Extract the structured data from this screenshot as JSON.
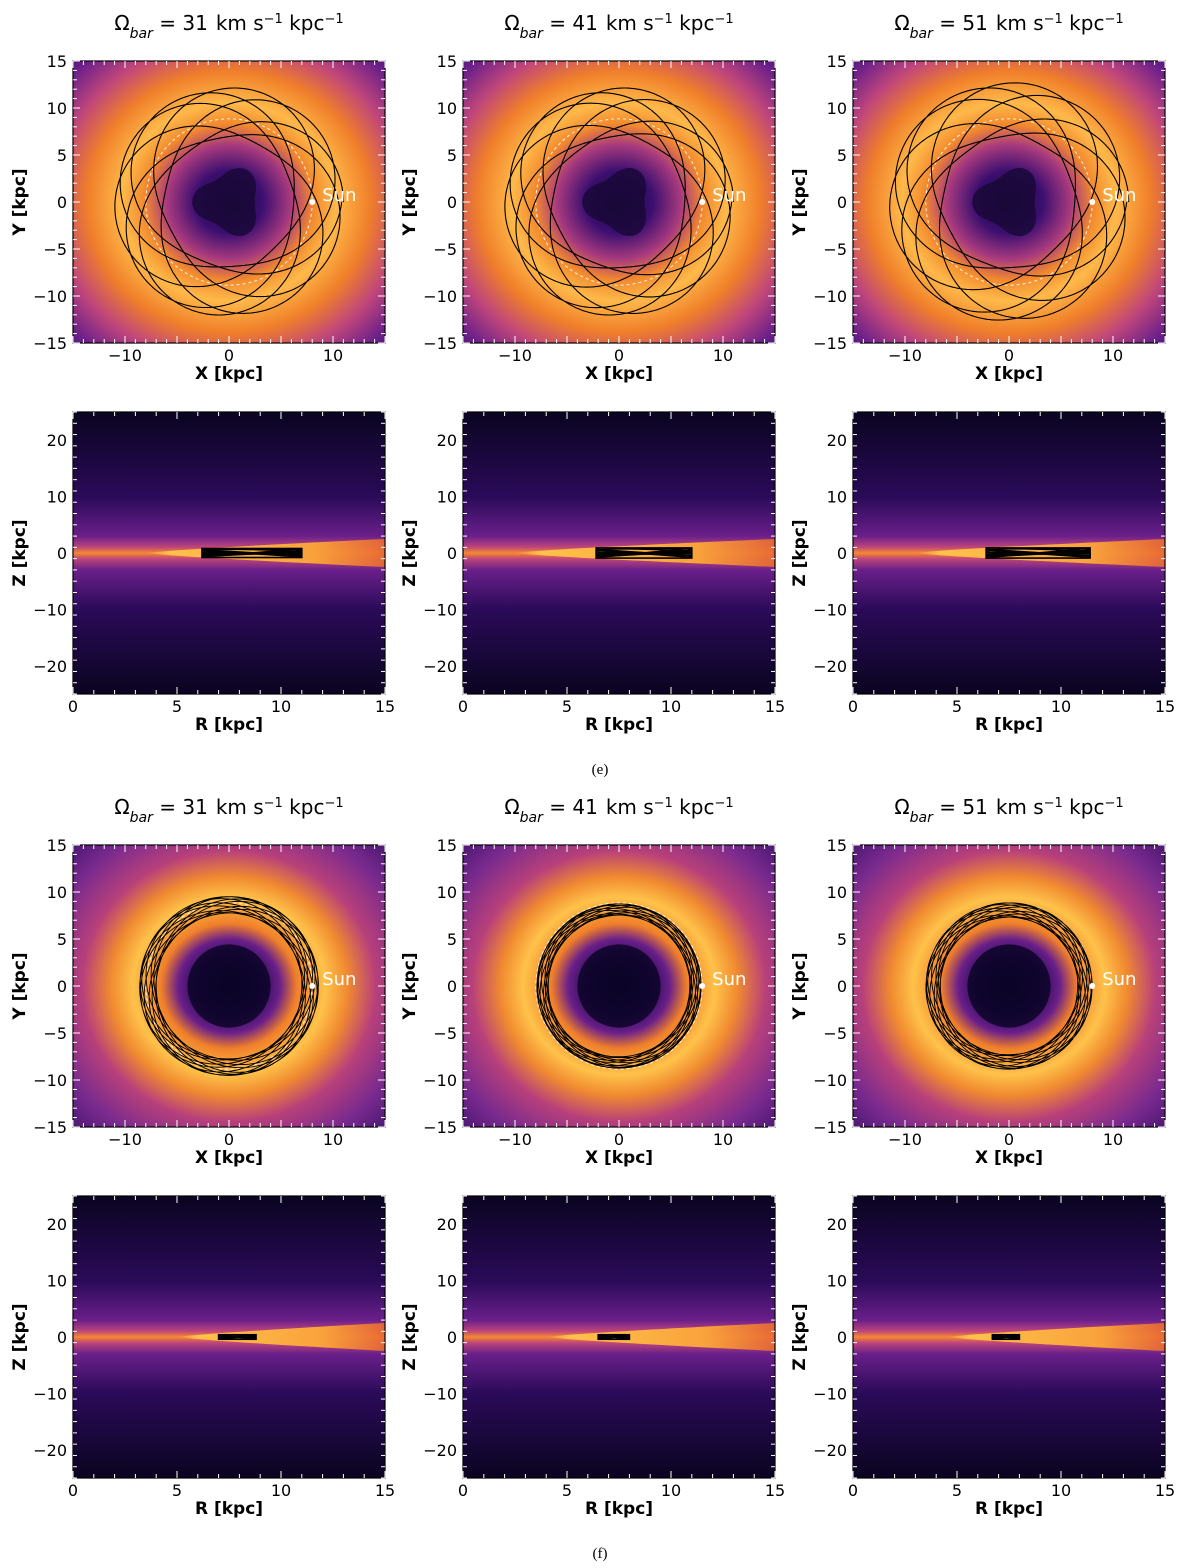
{
  "sections": [
    {
      "caption": "(e)",
      "columns": [
        {
          "title_prefix": "Ω",
          "title_sub": "bar",
          "title_eq": " = ",
          "value": "31",
          "unit_km": "km s",
          "unit_exp": "−1",
          "unit_kpc": " kpc",
          "unit_exp2": "−1",
          "face_on": {
            "xlabel": "X [kpc]",
            "ylabel": "Y [kpc]",
            "xticks": [
              "−10",
              "0",
              "10"
            ],
            "yticks": [
              "15",
              "10",
              "5",
              "0",
              "−5",
              "−10",
              "−15"
            ],
            "xlim": [
              -15,
              15
            ],
            "ylim": [
              -15,
              15
            ],
            "sun_label": "Sun",
            "sun_x": 8,
            "sun_y": 0,
            "orbit_type": "rosette",
            "orbit_rmin": 6.2,
            "orbit_rmax": 11.0,
            "ref_circle_r": 8.0,
            "inner_hole": "triangular"
          },
          "edge_on": {
            "xlabel": "R [kpc]",
            "ylabel": "Z [kpc]",
            "xticks": [
              "0",
              "5",
              "10",
              "15"
            ],
            "yticks": [
              "20",
              "10",
              "0",
              "−10",
              "−20"
            ],
            "xlim": [
              0,
              15
            ],
            "ylim": [
              -25,
              25
            ],
            "orbit_rmin": 6.2,
            "orbit_rmax": 11.0,
            "orbit_zmax": 0.8,
            "disk_start": 3.5
          }
        },
        {
          "title_prefix": "Ω",
          "title_sub": "bar",
          "title_eq": " = ",
          "value": "41",
          "unit_km": "km s",
          "unit_exp": "−1",
          "unit_kpc": " kpc",
          "unit_exp2": "−1",
          "face_on": {
            "xlabel": "X [kpc]",
            "ylabel": "Y [kpc]",
            "xticks": [
              "−10",
              "0",
              "10"
            ],
            "yticks": [
              "15",
              "10",
              "5",
              "0",
              "−5",
              "−10",
              "−15"
            ],
            "xlim": [
              -15,
              15
            ],
            "ylim": [
              -15,
              15
            ],
            "sun_label": "Sun",
            "sun_x": 8,
            "sun_y": 0,
            "orbit_type": "rosette",
            "orbit_rmin": 6.3,
            "orbit_rmax": 11.0,
            "ref_circle_r": 8.0,
            "inner_hole": "triangular"
          },
          "edge_on": {
            "xlabel": "R [kpc]",
            "ylabel": "Z [kpc]",
            "xticks": [
              "0",
              "5",
              "10",
              "15"
            ],
            "yticks": [
              "20",
              "10",
              "0",
              "−10",
              "−20"
            ],
            "xlim": [
              0,
              15
            ],
            "ylim": [
              -25,
              25
            ],
            "orbit_rmin": 6.4,
            "orbit_rmax": 11.0,
            "orbit_zmax": 0.9,
            "disk_start": 2.5
          }
        },
        {
          "title_prefix": "Ω",
          "title_sub": "bar",
          "title_eq": " = ",
          "value": "51",
          "unit_km": "km s",
          "unit_exp": "−1",
          "unit_kpc": " kpc",
          "unit_exp2": "−1",
          "face_on": {
            "xlabel": "X [kpc]",
            "ylabel": "Y [kpc]",
            "xticks": [
              "−10",
              "0",
              "10"
            ],
            "yticks": [
              "15",
              "10",
              "5",
              "0",
              "−5",
              "−10",
              "−15"
            ],
            "xlim": [
              -15,
              15
            ],
            "ylim": [
              -15,
              15
            ],
            "sun_label": "Sun",
            "sun_x": 8,
            "sun_y": 0,
            "orbit_type": "rosette",
            "orbit_rmin": 6.3,
            "orbit_rmax": 11.5,
            "ref_circle_r": 8.0,
            "inner_hole": "triangular"
          },
          "edge_on": {
            "xlabel": "R [kpc]",
            "ylabel": "Z [kpc]",
            "xticks": [
              "0",
              "5",
              "10",
              "15"
            ],
            "yticks": [
              "20",
              "10",
              "0",
              "−10",
              "−20"
            ],
            "xlim": [
              0,
              15
            ],
            "ylim": [
              -25,
              25
            ],
            "orbit_rmin": 6.4,
            "orbit_rmax": 11.4,
            "orbit_zmax": 0.9,
            "disk_start": 3.0
          }
        }
      ]
    },
    {
      "caption": "(f)",
      "columns": [
        {
          "title_prefix": "Ω",
          "title_sub": "bar",
          "title_eq": " = ",
          "value": "31",
          "unit_km": "km s",
          "unit_exp": "−1",
          "unit_kpc": " kpc",
          "unit_exp2": "−1",
          "face_on": {
            "xlabel": "X [kpc]",
            "ylabel": "Y [kpc]",
            "xticks": [
              "−10",
              "0",
              "10"
            ],
            "yticks": [
              "15",
              "10",
              "5",
              "0",
              "−5",
              "−10",
              "−15"
            ],
            "xlim": [
              -15,
              15
            ],
            "ylim": [
              -15,
              15
            ],
            "sun_label": "Sun",
            "sun_x": 8,
            "sun_y": 0,
            "orbit_type": "ring",
            "orbit_rmin": 7.0,
            "orbit_rmax": 8.6,
            "ref_circle_r": 8.0,
            "inner_hole": "round"
          },
          "edge_on": {
            "xlabel": "R [kpc]",
            "ylabel": "Z [kpc]",
            "xticks": [
              "0",
              "5",
              "10",
              "15"
            ],
            "yticks": [
              "20",
              "10",
              "0",
              "−10",
              "−20"
            ],
            "xlim": [
              0,
              15
            ],
            "ylim": [
              -25,
              25
            ],
            "orbit_rmin": 7.0,
            "orbit_rmax": 8.8,
            "orbit_zmax": 0.4,
            "disk_start": 5.0
          }
        },
        {
          "title_prefix": "Ω",
          "title_sub": "bar",
          "title_eq": " = ",
          "value": "41",
          "unit_km": "km s",
          "unit_exp": "−1",
          "unit_kpc": " kpc",
          "unit_exp2": "−1",
          "face_on": {
            "xlabel": "X [kpc]",
            "ylabel": "Y [kpc]",
            "xticks": [
              "−10",
              "0",
              "10"
            ],
            "yticks": [
              "15",
              "10",
              "5",
              "0",
              "−5",
              "−10",
              "−15"
            ],
            "xlim": [
              -15,
              15
            ],
            "ylim": [
              -15,
              15
            ],
            "sun_label": "Sun",
            "sun_x": 8,
            "sun_y": 0,
            "orbit_type": "ring",
            "orbit_rmin": 6.8,
            "orbit_rmax": 7.9,
            "ref_circle_r": 8.0,
            "inner_hole": "round"
          },
          "edge_on": {
            "xlabel": "R [kpc]",
            "ylabel": "Z [kpc]",
            "xticks": [
              "0",
              "5",
              "10",
              "15"
            ],
            "yticks": [
              "20",
              "10",
              "0",
              "−10",
              "−20"
            ],
            "xlim": [
              0,
              15
            ],
            "ylim": [
              -25,
              25
            ],
            "orbit_rmin": 6.5,
            "orbit_rmax": 8.0,
            "orbit_zmax": 0.4,
            "disk_start": 4.0
          }
        },
        {
          "title_prefix": "Ω",
          "title_sub": "bar",
          "title_eq": " = ",
          "value": "51",
          "unit_km": "km s",
          "unit_exp": "−1",
          "unit_kpc": " kpc",
          "unit_exp2": "−1",
          "face_on": {
            "xlabel": "X [kpc]",
            "ylabel": "Y [kpc]",
            "xticks": [
              "−10",
              "0",
              "10"
            ],
            "yticks": [
              "15",
              "10",
              "5",
              "0",
              "−5",
              "−10",
              "−15"
            ],
            "xlim": [
              -15,
              15
            ],
            "ylim": [
              -15,
              15
            ],
            "sun_label": "Sun",
            "sun_x": 8,
            "sun_y": 0,
            "orbit_type": "ring",
            "orbit_rmin": 6.6,
            "orbit_rmax": 8.0,
            "ref_circle_r": 8.0,
            "inner_hole": "round"
          },
          "edge_on": {
            "xlabel": "R [kpc]",
            "ylabel": "Z [kpc]",
            "xticks": [
              "0",
              "5",
              "10",
              "15"
            ],
            "yticks": [
              "20",
              "10",
              "0",
              "−10",
              "−20"
            ],
            "xlim": [
              0,
              15
            ],
            "ylim": [
              -25,
              25
            ],
            "orbit_rmin": 6.7,
            "orbit_rmax": 8.0,
            "orbit_zmax": 0.4,
            "disk_start": 4.5
          }
        }
      ]
    }
  ],
  "colors": {
    "background_dark": "#0a0420",
    "mid_purple": "#5a1a8a",
    "magenta": "#b5367a",
    "orange": "#f07f2a",
    "bright": "#ffc24a",
    "orbit": "#000000",
    "sun": "#ffffff"
  }
}
